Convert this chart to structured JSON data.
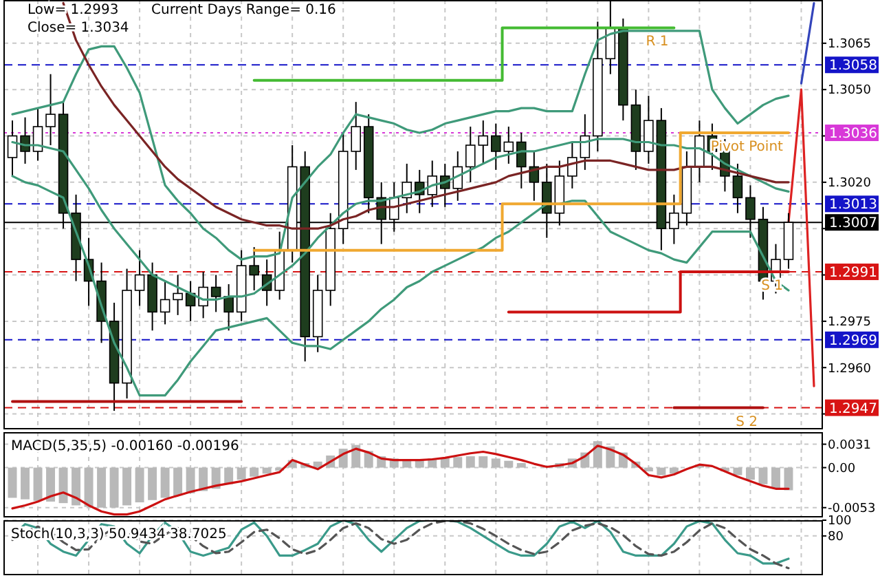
{
  "chart_data": [
    {
      "type": "candlestick",
      "tick_labels": "y",
      "grid": true,
      "categories": [
        null,
        null,
        null,
        null,
        null,
        null,
        null,
        null,
        null,
        null,
        null,
        null,
        null,
        null,
        null,
        null,
        null,
        null,
        null,
        null,
        null,
        null,
        null,
        null,
        null,
        null,
        null,
        null,
        null,
        null,
        null,
        null,
        null,
        null,
        null,
        null,
        null,
        null,
        null,
        null,
        null,
        null,
        null,
        null,
        null,
        null,
        null,
        null,
        null,
        null,
        null,
        null,
        null,
        null,
        null,
        null,
        null,
        null,
        null,
        null,
        null,
        null,
        null,
        null
      ],
      "ylim": [
        1.294,
        1.3079
      ],
      "yticks": [
        1.3065,
        {
          "value": 1.305,
          "label": "1.3050"
        },
        {
          "value": 1.3035,
          "label": null
        },
        {
          "value": 1.302,
          "label": "1.3020"
        },
        {
          "value": 1.3005,
          "label": null
        },
        {
          "value": 1.299,
          "label": null
        },
        1.2975,
        {
          "value": 1.296,
          "label": "1.2960"
        },
        {
          "value": 1.2945,
          "label": null
        }
      ],
      "ohlc": [
        [
          1.3028,
          1.304,
          1.3022,
          1.3035
        ],
        [
          1.3035,
          1.3041,
          1.3026,
          1.303
        ],
        [
          1.303,
          1.3044,
          1.3027,
          1.3038
        ],
        [
          1.3038,
          1.3055,
          1.3032,
          1.3042
        ],
        [
          1.3042,
          1.3046,
          1.3005,
          1.301
        ],
        [
          1.301,
          1.3016,
          1.2988,
          1.2995
        ],
        [
          1.2995,
          1.3002,
          1.298,
          1.2988
        ],
        [
          1.2988,
          1.2994,
          1.2968,
          1.2975
        ],
        [
          1.2975,
          1.2981,
          1.2946,
          1.2955
        ],
        [
          1.2955,
          1.2992,
          1.295,
          1.2985
        ],
        [
          1.2985,
          1.2998,
          1.298,
          1.299
        ],
        [
          1.299,
          1.2994,
          1.2972,
          1.2978
        ],
        [
          1.2978,
          1.2988,
          1.2974,
          1.2982
        ],
        [
          1.2982,
          1.299,
          1.2977,
          1.2984
        ],
        [
          1.2984,
          1.2988,
          1.2975,
          1.298
        ],
        [
          1.298,
          1.2991,
          1.2976,
          1.2986
        ],
        [
          1.2986,
          1.299,
          1.2978,
          1.2983
        ],
        [
          1.2983,
          1.2987,
          1.2972,
          1.2978
        ],
        [
          1.2978,
          1.2998,
          1.2975,
          1.2993
        ],
        [
          1.2993,
          1.2999,
          1.2985,
          1.299
        ],
        [
          1.299,
          1.2995,
          1.298,
          1.2985
        ],
        [
          1.2985,
          1.3004,
          1.2982,
          1.2998
        ],
        [
          1.2998,
          1.3032,
          1.2994,
          1.3025
        ],
        [
          1.3025,
          1.303,
          1.2962,
          1.297
        ],
        [
          1.297,
          1.299,
          1.2965,
          1.2985
        ],
        [
          1.2985,
          1.301,
          1.298,
          1.3005
        ],
        [
          1.3005,
          1.3036,
          1.3,
          1.303
        ],
        [
          1.303,
          1.3046,
          1.3024,
          1.3038
        ],
        [
          1.3038,
          1.3042,
          1.301,
          1.3015
        ],
        [
          1.3015,
          1.302,
          1.3,
          1.3008
        ],
        [
          1.3008,
          1.302,
          1.3004,
          1.3015
        ],
        [
          1.3015,
          1.3026,
          1.301,
          1.302
        ],
        [
          1.302,
          1.3024,
          1.301,
          1.3016
        ],
        [
          1.3016,
          1.3027,
          1.3012,
          1.3022
        ],
        [
          1.3022,
          1.3026,
          1.3012,
          1.3018
        ],
        [
          1.3018,
          1.303,
          1.3014,
          1.3025
        ],
        [
          1.3025,
          1.3038,
          1.302,
          1.3032
        ],
        [
          1.3032,
          1.304,
          1.3026,
          1.3035
        ],
        [
          1.3035,
          1.3039,
          1.3024,
          1.303
        ],
        [
          1.303,
          1.3038,
          1.3026,
          1.3033
        ],
        [
          1.3033,
          1.3036,
          1.3018,
          1.3025
        ],
        [
          1.3025,
          1.303,
          1.3014,
          1.302
        ],
        [
          1.302,
          1.3026,
          1.3002,
          1.301
        ],
        [
          1.301,
          1.3027,
          1.3006,
          1.3022
        ],
        [
          1.3022,
          1.3033,
          1.3018,
          1.3028
        ],
        [
          1.3028,
          1.3042,
          1.3024,
          1.3035
        ],
        [
          1.3035,
          1.3072,
          1.303,
          1.306
        ],
        [
          1.306,
          1.3079,
          1.3055,
          1.307
        ],
        [
          1.307,
          1.3073,
          1.304,
          1.3045
        ],
        [
          1.3045,
          1.305,
          1.3024,
          1.303
        ],
        [
          1.303,
          1.3048,
          1.3026,
          1.304
        ],
        [
          1.304,
          1.3044,
          1.2998,
          1.3005
        ],
        [
          1.3005,
          1.3016,
          1.3,
          1.301
        ],
        [
          1.301,
          1.303,
          1.3006,
          1.3025
        ],
        [
          1.3025,
          1.304,
          1.302,
          1.3035
        ],
        [
          1.3035,
          1.3039,
          1.3024,
          1.303
        ],
        [
          1.303,
          1.3034,
          1.3017,
          1.3022
        ],
        [
          1.3022,
          1.3026,
          1.301,
          1.3015
        ],
        [
          1.3015,
          1.3019,
          1.3002,
          1.3008
        ],
        [
          1.3008,
          1.3012,
          1.2982,
          1.2988
        ],
        [
          1.2988,
          1.3,
          1.2984,
          1.2995
        ],
        [
          1.2995,
          1.301,
          1.2992,
          1.3007
        ],
        null,
        null
      ],
      "series": [
        {
          "type": "line",
          "color": "#3f9a7a",
          "values": [
            1.3042,
            1.3043,
            1.3044,
            1.3045,
            1.3046,
            1.3055,
            1.3063,
            1.3064,
            1.3064,
            1.3057,
            1.3049,
            1.3034,
            1.3019,
            1.3014,
            1.301,
            1.3005,
            1.3002,
            1.2998,
            1.2995,
            1.2996,
            1.2996,
            1.2997,
            1.3015,
            1.302,
            1.3025,
            1.3029,
            1.3036,
            1.3042,
            1.3041,
            1.304,
            1.3039,
            1.3037,
            1.3036,
            1.3037,
            1.3039,
            1.304,
            1.3041,
            1.3042,
            1.3043,
            1.3043,
            1.3044,
            1.3044,
            1.3043,
            1.3043,
            1.3043,
            1.3055,
            1.3066,
            1.3068,
            1.3069,
            1.3069,
            1.3069,
            1.3069,
            1.3069,
            1.3069,
            1.3069,
            1.305,
            1.3044,
            1.3039,
            1.3042,
            1.3045,
            1.3047,
            1.3048,
            null,
            null
          ]
        },
        {
          "type": "line",
          "color": "#3f9a7a",
          "values": [
            1.3033,
            1.3032,
            1.3032,
            1.3031,
            1.303,
            1.3024,
            1.3018,
            1.3011,
            1.3005,
            1.3,
            1.2995,
            1.299,
            1.2988,
            1.2986,
            1.2984,
            1.2982,
            1.2982,
            1.2983,
            1.2983,
            1.2984,
            1.2987,
            1.299,
            1.2993,
            1.2997,
            1.3002,
            1.3006,
            1.301,
            1.3013,
            1.3014,
            1.3014,
            1.3015,
            1.3016,
            1.3017,
            1.3019,
            1.302,
            1.3022,
            1.3024,
            1.3026,
            1.3028,
            1.3029,
            1.303,
            1.303,
            1.3031,
            1.3032,
            1.3033,
            1.3033,
            1.3034,
            1.3034,
            1.3034,
            1.3033,
            1.3033,
            1.3032,
            1.3032,
            1.3031,
            1.3031,
            1.3029,
            1.3026,
            1.3024,
            1.3022,
            1.302,
            1.3018,
            1.3017,
            null,
            null
          ]
        },
        {
          "type": "line",
          "color": "#3f9a7a",
          "values": [
            1.3022,
            1.302,
            1.3019,
            1.3017,
            1.3015,
            1.3004,
            1.2993,
            1.298,
            1.2968,
            1.296,
            1.2951,
            1.2951,
            1.2951,
            1.2956,
            1.2962,
            1.2967,
            1.2972,
            1.2973,
            1.2974,
            1.2975,
            1.2976,
            1.2972,
            1.2968,
            1.2967,
            1.2967,
            1.2966,
            1.2969,
            1.2972,
            1.2975,
            1.2979,
            1.2982,
            1.2986,
            1.2988,
            1.2991,
            1.2993,
            1.2995,
            1.2997,
            1.2999,
            1.3002,
            1.3004,
            1.3007,
            1.301,
            1.3013,
            1.3013,
            1.3014,
            1.3014,
            1.3009,
            1.3004,
            1.3002,
            1.3,
            1.2998,
            1.2997,
            1.2995,
            1.2994,
            1.2999,
            1.3004,
            1.3004,
            1.3004,
            1.3004,
            1.2996,
            1.2988,
            1.2985,
            null,
            null
          ]
        },
        {
          "type": "line",
          "color": "#7a2424",
          "values": [
            null,
            null,
            null,
            null,
            1.3078,
            1.3066,
            1.3058,
            1.3051,
            1.3045,
            1.304,
            1.3035,
            1.303,
            1.3025,
            1.3021,
            1.3018,
            1.3015,
            1.3012,
            1.301,
            1.3008,
            1.3007,
            1.3006,
            1.3006,
            1.3005,
            1.3005,
            1.3005,
            1.3006,
            1.3008,
            1.3009,
            1.3011,
            1.3012,
            1.3012,
            1.3013,
            1.3014,
            1.3015,
            1.3016,
            1.3017,
            1.3018,
            1.3019,
            1.302,
            1.3022,
            1.3023,
            1.3024,
            1.3025,
            1.3025,
            1.3026,
            1.3027,
            1.3027,
            1.3027,
            1.3026,
            1.3025,
            1.3024,
            1.3024,
            1.3024,
            1.3025,
            1.3025,
            1.3025,
            1.3024,
            1.3023,
            1.3022,
            1.3021,
            1.302,
            1.302,
            null,
            null
          ]
        },
        {
          "type": "step",
          "name": "R 1",
          "color": "#44bb33",
          "values": [
            null,
            null,
            null,
            null,
            null,
            null,
            null,
            null,
            null,
            null,
            null,
            null,
            null,
            null,
            null,
            null,
            null,
            null,
            null,
            1.3053,
            1.3053,
            1.3053,
            1.3053,
            1.3053,
            1.3053,
            1.3053,
            1.3053,
            1.3053,
            1.3053,
            1.3053,
            1.3053,
            1.3053,
            1.3053,
            1.3053,
            1.3053,
            1.3053,
            1.3053,
            1.3053,
            1.3053,
            1.307,
            1.307,
            1.307,
            1.307,
            1.307,
            1.307,
            1.307,
            1.307,
            1.307,
            1.307,
            1.307,
            1.307,
            1.307,
            1.307,
            null,
            null,
            null,
            null,
            null,
            null,
            null,
            null,
            null,
            null,
            null
          ]
        },
        {
          "type": "step",
          "name": "Pivot Point",
          "color": "#f0a830",
          "values": [
            null,
            null,
            null,
            null,
            null,
            null,
            null,
            null,
            null,
            null,
            null,
            null,
            null,
            null,
            null,
            null,
            null,
            null,
            null,
            1.2998,
            1.2998,
            1.2998,
            1.2998,
            1.2998,
            1.2998,
            1.2998,
            1.2998,
            1.2998,
            1.2998,
            1.2998,
            1.2998,
            1.2998,
            1.2998,
            1.2998,
            1.2998,
            1.2998,
            1.2998,
            1.2998,
            1.2998,
            1.3013,
            1.3013,
            1.3013,
            1.3013,
            1.3013,
            1.3013,
            1.3013,
            1.3013,
            1.3013,
            1.3013,
            1.3013,
            1.3013,
            1.3013,
            1.3013,
            1.3036,
            1.3036,
            1.3036,
            1.3036,
            1.3036,
            1.3036,
            1.3036,
            1.3036,
            1.3036,
            null,
            null
          ]
        },
        {
          "type": "step",
          "name": "S 1",
          "color": "#cc1111",
          "values": [
            null,
            null,
            null,
            null,
            null,
            null,
            null,
            null,
            null,
            null,
            null,
            null,
            null,
            null,
            null,
            null,
            null,
            null,
            null,
            null,
            null,
            null,
            null,
            null,
            null,
            null,
            null,
            null,
            null,
            null,
            null,
            null,
            null,
            null,
            null,
            null,
            null,
            null,
            null,
            1.2978,
            1.2978,
            1.2978,
            1.2978,
            1.2978,
            1.2978,
            1.2978,
            1.2978,
            1.2978,
            1.2978,
            1.2978,
            1.2978,
            1.2978,
            1.2978,
            1.2991,
            1.2991,
            1.2991,
            1.2991,
            1.2991,
            1.2991,
            1.2991,
            1.2991,
            1.2991,
            null,
            null
          ]
        },
        {
          "type": "step",
          "name": "S 2",
          "color": "#b01010",
          "values": [
            1.2949,
            1.2949,
            1.2949,
            1.2949,
            1.2949,
            1.2949,
            1.2949,
            1.2949,
            1.2949,
            1.2949,
            1.2949,
            1.2949,
            1.2949,
            1.2949,
            1.2949,
            1.2949,
            1.2949,
            1.2949,
            1.2949,
            null,
            null,
            null,
            null,
            null,
            null,
            null,
            null,
            null,
            null,
            null,
            null,
            null,
            null,
            null,
            null,
            null,
            null,
            null,
            null,
            null,
            null,
            null,
            null,
            null,
            null,
            null,
            null,
            null,
            null,
            null,
            null,
            null,
            1.2947,
            1.2947,
            1.2947,
            1.2947,
            1.2947,
            1.2947,
            1.2947,
            1.2947,
            null,
            null,
            null,
            null
          ]
        },
        {
          "type": "line",
          "color": "#dd2222",
          "values": [
            null,
            null,
            null,
            null,
            null,
            null,
            null,
            null,
            null,
            null,
            null,
            null,
            null,
            null,
            null,
            null,
            null,
            null,
            null,
            null,
            null,
            null,
            null,
            null,
            null,
            null,
            null,
            null,
            null,
            null,
            null,
            null,
            null,
            null,
            null,
            null,
            null,
            null,
            null,
            null,
            null,
            null,
            null,
            null,
            null,
            null,
            null,
            null,
            null,
            null,
            null,
            null,
            null,
            null,
            null,
            null,
            null,
            null,
            null,
            null,
            null,
            1.3007,
            1.305,
            1.2954
          ]
        },
        {
          "type": "line",
          "color": "#3344bb",
          "values": [
            null,
            null,
            null,
            null,
            null,
            null,
            null,
            null,
            null,
            null,
            null,
            null,
            null,
            null,
            null,
            null,
            null,
            null,
            null,
            null,
            null,
            null,
            null,
            null,
            null,
            null,
            null,
            null,
            null,
            null,
            null,
            null,
            null,
            null,
            null,
            null,
            null,
            null,
            null,
            null,
            null,
            null,
            null,
            null,
            null,
            null,
            null,
            null,
            null,
            null,
            null,
            null,
            null,
            null,
            null,
            null,
            null,
            null,
            null,
            null,
            null,
            null,
            1.3052,
            1.3078
          ]
        }
      ],
      "ref_lines": [
        {
          "axis": "y",
          "value": 1.3058,
          "label": "1.3058",
          "color": "#1414c8",
          "line_style": "dashed"
        },
        {
          "axis": "y",
          "value": 1.3036,
          "label": "1.3036",
          "color": "#d838d8",
          "line_style": "dotted"
        },
        {
          "axis": "y",
          "value": 1.3013,
          "label": "1.3013",
          "color": "#1414c8",
          "line_style": "dashed"
        },
        {
          "axis": "y",
          "value": 1.3007,
          "label": "1.3007",
          "color": "#000000",
          "line_style": "solid"
        },
        {
          "axis": "y",
          "value": 1.2991,
          "label": "1.2991",
          "color": "#d81414",
          "line_style": "dashed"
        },
        {
          "axis": "y",
          "value": 1.2969,
          "label": "1.2969",
          "color": "#1414c8",
          "line_style": "dashed"
        },
        {
          "axis": "y",
          "value": 1.2947,
          "label": "1.2947",
          "color": "#d81414",
          "line_style": "dashed"
        }
      ],
      "annotations": [
        "Low= 1.2993",
        "Current Days Range= 0.16",
        "Close= 1.3034"
      ]
    },
    {
      "type": "bar",
      "tick_labels": "y",
      "grid": true,
      "title": "MACD(5,35,5) -0.00160 -0.00196",
      "categories": [
        null,
        null,
        null,
        null,
        null,
        null,
        null,
        null,
        null,
        null,
        null,
        null,
        null,
        null,
        null,
        null,
        null,
        null,
        null,
        null,
        null,
        null,
        null,
        null,
        null,
        null,
        null,
        null,
        null,
        null,
        null,
        null,
        null,
        null,
        null,
        null,
        null,
        null,
        null,
        null,
        null,
        null,
        null,
        null,
        null,
        null,
        null,
        null,
        null,
        null,
        null,
        null,
        null,
        null,
        null,
        null,
        null,
        null,
        null,
        null,
        null,
        null,
        null,
        null
      ],
      "ylim": [
        -0.0066,
        0.0047
      ],
      "yticks": [
        0.0031,
        {
          "value": 0,
          "label": "0.00"
        },
        -0.0053
      ],
      "series": [
        {
          "type": "bar",
          "color": "#b8b8b8",
          "values": [
            -0.004,
            -0.0042,
            -0.0044,
            -0.0045,
            -0.0047,
            -0.005,
            -0.0052,
            -0.0053,
            -0.0053,
            -0.005,
            -0.0046,
            -0.0043,
            -0.004,
            -0.0037,
            -0.0034,
            -0.0031,
            -0.0028,
            -0.0022,
            -0.0016,
            -0.0012,
            -0.0008,
            -0.0004,
            0.001,
            0.0006,
            0.0008,
            0.0016,
            0.0025,
            0.003,
            0.0022,
            0.0015,
            0.0012,
            0.001,
            0.0011,
            0.0012,
            0.0013,
            0.0014,
            0.0015,
            0.0015,
            0.0012,
            0.0009,
            0.0006,
            null,
            0,
            0.0006,
            0.0012,
            0.002,
            0.0035,
            0.0028,
            0.002,
            0.0008,
            -0.0005,
            -0.001,
            -0.0008,
            0,
            0.0004,
            null,
            -0.0005,
            -0.001,
            -0.0016,
            -0.0022,
            -0.0027,
            -0.003,
            null,
            null
          ]
        },
        {
          "type": "line",
          "color": "#cc1111",
          "values": [
            -0.0054,
            -0.005,
            -0.0045,
            -0.0038,
            -0.0033,
            -0.004,
            -0.005,
            -0.0058,
            -0.0062,
            -0.0062,
            -0.0058,
            -0.005,
            -0.0042,
            -0.0037,
            -0.0032,
            -0.0028,
            -0.0024,
            -0.0021,
            -0.0018,
            -0.0014,
            -0.001,
            -0.0006,
            0.001,
            0.0004,
            -0.0002,
            0.0008,
            0.0018,
            0.0025,
            0.002,
            0.0012,
            0.001,
            0.001,
            0.001,
            0.0011,
            0.0013,
            0.0016,
            0.0019,
            0.0021,
            0.0018,
            0.0014,
            0.001,
            0.0005,
            0.0001,
            0.0003,
            0.0006,
            0.0015,
            0.0029,
            0.0024,
            0.0017,
            0.0005,
            -0.001,
            -0.0013,
            -0.0009,
            -0.0002,
            0.0004,
            0.0002,
            -0.0005,
            -0.0012,
            -0.0018,
            -0.0024,
            -0.0028,
            -0.0028,
            null,
            null
          ]
        }
      ]
    },
    {
      "type": "line",
      "tick_labels": "y",
      "grid": true,
      "title": "Stoch(10,3,3) 50.9434 38.7025",
      "categories": [
        null,
        null,
        null,
        null,
        null,
        null,
        null,
        null,
        null,
        null,
        null,
        null,
        null,
        null,
        null,
        null,
        null,
        null,
        null,
        null,
        null,
        null,
        null,
        null,
        null,
        null,
        null,
        null,
        null,
        null,
        null,
        null,
        null,
        null,
        null,
        null,
        null,
        null,
        null,
        null,
        null,
        null,
        null,
        null,
        null,
        null,
        null,
        null,
        null,
        null,
        null,
        null,
        null,
        null,
        null,
        null,
        null,
        null,
        null,
        null,
        null,
        null,
        null,
        null
      ],
      "ylim": [
        30,
        100
      ],
      "yticks": [
        80,
        100
      ],
      "series": [
        {
          "type": "line",
          "color": "#3a9a8a",
          "values": [
            80,
            95,
            90,
            70,
            60,
            55,
            75,
            95,
            92,
            70,
            58,
            80,
            97,
            85,
            60,
            55,
            60,
            65,
            88,
            97,
            80,
            55,
            55,
            62,
            70,
            92,
            100,
            95,
            75,
            60,
            75,
            90,
            99,
            100,
            100,
            98,
            90,
            80,
            70,
            60,
            55,
            55,
            70,
            92,
            98,
            90,
            99,
            85,
            60,
            55,
            55,
            55,
            70,
            92,
            99,
            96,
            75,
            58,
            55,
            45,
            45,
            51,
            null,
            null
          ]
        },
        {
          "type": "line",
          "color": "#555555",
          "line_style": "dashed",
          "values": [
            75,
            85,
            92,
            85,
            72,
            62,
            63,
            80,
            90,
            86,
            73,
            70,
            82,
            90,
            80,
            67,
            58,
            60,
            72,
            85,
            88,
            77,
            63,
            57,
            62,
            75,
            90,
            96,
            90,
            76,
            70,
            75,
            88,
            96,
            99,
            99,
            96,
            89,
            80,
            70,
            62,
            57,
            60,
            72,
            87,
            93,
            96,
            91,
            81,
            67,
            57,
            55,
            60,
            72,
            87,
            96,
            90,
            76,
            63,
            55,
            45,
            39,
            null,
            null
          ]
        }
      ]
    }
  ]
}
